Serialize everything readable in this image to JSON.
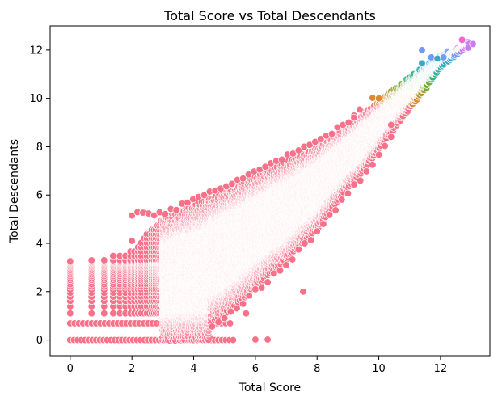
{
  "chart_data": {
    "type": "scatter",
    "title": "Total Score vs Total Descendants",
    "xlabel": "Total Score",
    "ylabel": "Total Descendants",
    "xlim": [
      -0.65,
      13.6
    ],
    "ylim": [
      -0.65,
      13.0
    ],
    "x_ticks": [
      0,
      2,
      4,
      6,
      8,
      10,
      12
    ],
    "y_ticks": [
      0,
      2,
      4,
      6,
      8,
      10,
      12
    ],
    "x_tick_labels": [
      "0",
      "2",
      "4",
      "6",
      "8",
      "10",
      "12"
    ],
    "y_tick_labels": [
      "0",
      "2",
      "4",
      "6",
      "8",
      "10",
      "12"
    ],
    "grid": false,
    "legend": "none",
    "hue": "Total Descendants",
    "palette": [
      "#f77189",
      "#dc8932",
      "#ae9d31",
      "#77ab31",
      "#33b07a",
      "#36ada4",
      "#38a9c5",
      "#6e9bf4",
      "#cc7af4",
      "#f565cc"
    ],
    "x_columns": [
      0,
      0.69,
      1.1,
      1.39,
      1.61,
      1.79,
      1.95,
      2.08,
      2.2,
      2.3,
      2.4,
      2.48,
      2.56,
      2.64,
      2.71,
      2.77,
      2.83,
      2.89,
      2.94,
      3.0
    ],
    "col_top": [
      3.26,
      3.33,
      3.45,
      3.5,
      3.55,
      3.58,
      3.7,
      3.8,
      3.95,
      4.15,
      4.3,
      4.4,
      4.5,
      4.6,
      4.65,
      4.7,
      4.8,
      4.9,
      4.95,
      5.05
    ],
    "upper_envelope": [
      [
        3.0,
        5.05
      ],
      [
        4.0,
        5.6
      ],
      [
        5.0,
        6.2
      ],
      [
        6.0,
        6.8
      ],
      [
        7.0,
        7.4
      ],
      [
        8.0,
        8.0
      ],
      [
        9.0,
        8.9
      ],
      [
        10.0,
        9.9
      ],
      [
        11.0,
        10.9
      ],
      [
        12.0,
        11.8
      ],
      [
        13.0,
        12.4
      ]
    ],
    "lower_envelope": [
      [
        4.5,
        0.7
      ],
      [
        5.0,
        1.1
      ],
      [
        5.5,
        1.6
      ],
      [
        6.0,
        2.2
      ],
      [
        6.5,
        2.8
      ],
      [
        7.0,
        3.3
      ],
      [
        7.5,
        4.0
      ],
      [
        8.0,
        4.6
      ],
      [
        8.5,
        5.5
      ],
      [
        9.0,
        6.3
      ],
      [
        9.5,
        7.0
      ],
      [
        10.0,
        7.9
      ],
      [
        10.5,
        8.8
      ],
      [
        11.0,
        9.6
      ],
      [
        11.5,
        10.4
      ],
      [
        12.0,
        11.3
      ],
      [
        13.0,
        12.3
      ]
    ],
    "bottom_row_extent": [
      0,
      5.3
    ],
    "highlighted_points": [
      {
        "x": 2.0,
        "y": 4.1
      },
      {
        "x": 7.55,
        "y": 2.0
      },
      {
        "x": 6.0,
        "y": 0.02
      },
      {
        "x": 6.4,
        "y": 0.02
      },
      {
        "x": 5.7,
        "y": 1.1
      },
      {
        "x": 9.8,
        "y": 10.02
      },
      {
        "x": 10.0,
        "y": 10.0
      },
      {
        "x": 9.2,
        "y": 9.2
      },
      {
        "x": 10.4,
        "y": 8.9
      },
      {
        "x": 11.4,
        "y": 12.0
      },
      {
        "x": 11.4,
        "y": 11.45
      },
      {
        "x": 11.7,
        "y": 11.7
      },
      {
        "x": 11.9,
        "y": 11.65
      },
      {
        "x": 12.1,
        "y": 11.7
      },
      {
        "x": 12.7,
        "y": 12.42
      },
      {
        "x": 12.9,
        "y": 12.1
      },
      {
        "x": 13.05,
        "y": 12.25
      }
    ]
  }
}
